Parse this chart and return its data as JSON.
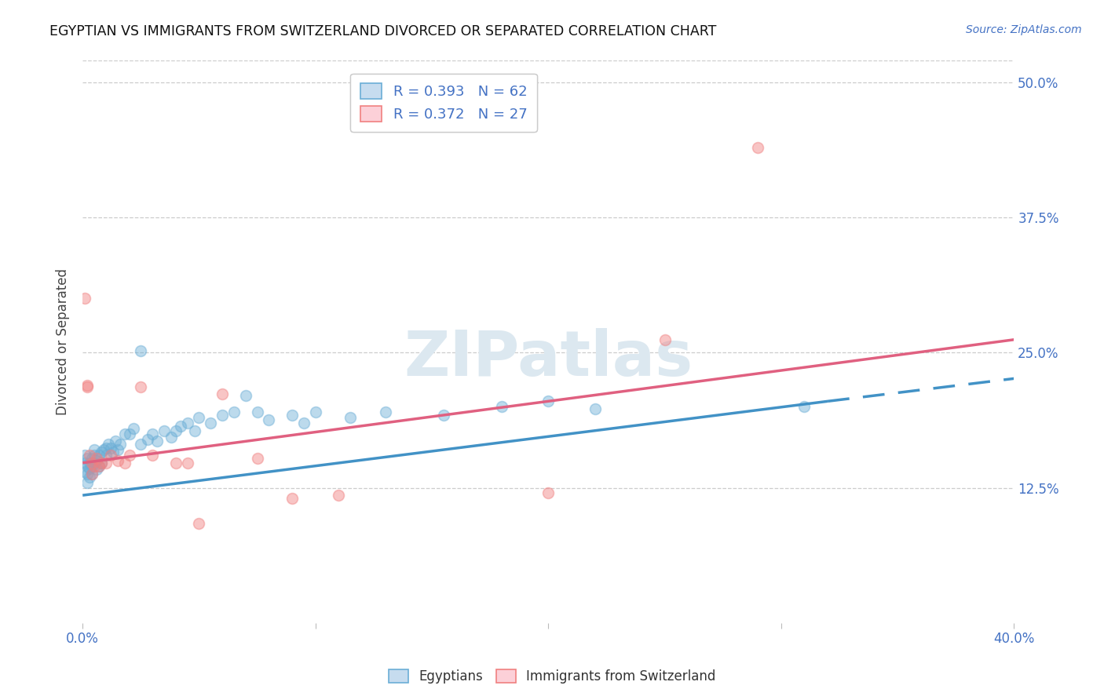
{
  "title": "EGYPTIAN VS IMMIGRANTS FROM SWITZERLAND DIVORCED OR SEPARATED CORRELATION CHART",
  "source": "Source: ZipAtlas.com",
  "ylabel": "Divorced or Separated",
  "ytick_labels": [
    "12.5%",
    "25.0%",
    "37.5%",
    "50.0%"
  ],
  "ytick_values": [
    0.125,
    0.25,
    0.375,
    0.5
  ],
  "xlim": [
    0.0,
    0.4
  ],
  "ylim": [
    0.0,
    0.52
  ],
  "color_egyptians": "#6baed6",
  "color_swiss": "#f08080",
  "color_trend_egyptians": "#4292c6",
  "color_trend_swiss": "#e06080",
  "background_color": "#ffffff",
  "watermark": "ZIPatlas",
  "watermark_color": "#dce8f0",
  "legend_r_eg": "R = 0.393",
  "legend_n_eg": "N = 62",
  "legend_r_sw": "R = 0.372",
  "legend_n_sw": "N = 27",
  "legend_label_eg": "Egyptians",
  "legend_label_sw": "Immigrants from Switzerland",
  "eg_trend_x0": 0.0,
  "eg_trend_y0": 0.118,
  "eg_trend_x1": 0.32,
  "eg_trend_y1": 0.205,
  "eg_trend_dash_x1": 0.4,
  "eg_trend_dash_y1": 0.226,
  "sw_trend_x0": 0.0,
  "sw_trend_y0": 0.148,
  "sw_trend_x1": 0.4,
  "sw_trend_y1": 0.262
}
